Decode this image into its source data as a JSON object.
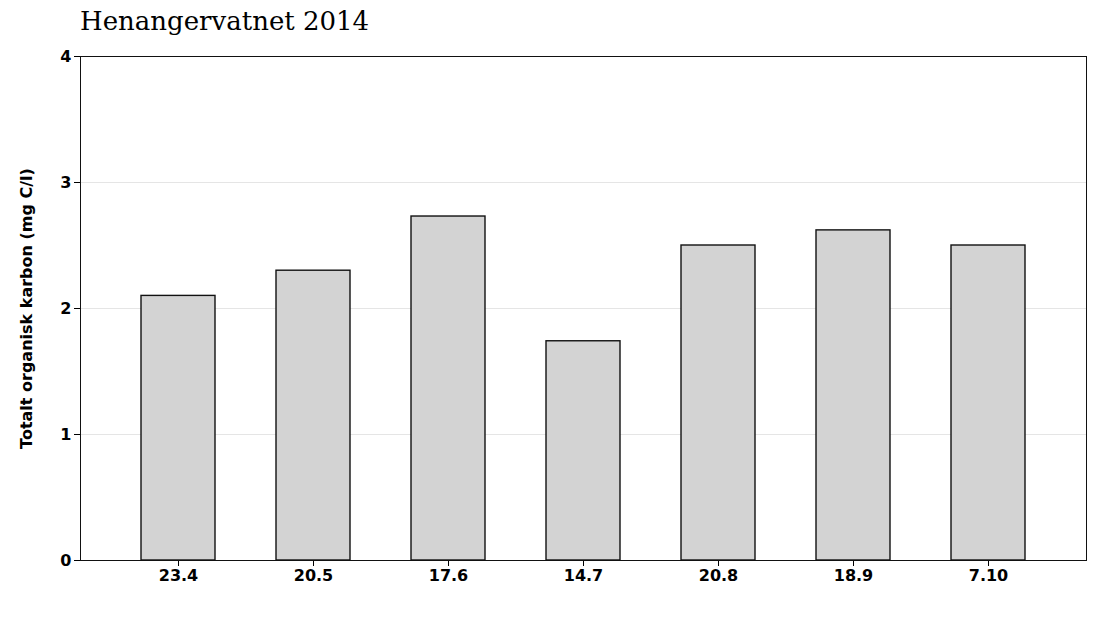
{
  "chart_data": {
    "type": "bar",
    "title": "Henangervatnet 2014",
    "categories": [
      "23.4",
      "20.5",
      "17.6",
      "14.7",
      "20.8",
      "18.9",
      "7.10"
    ],
    "values": [
      2.1,
      2.3,
      2.73,
      1.74,
      2.5,
      2.62,
      2.5
    ],
    "color": "#d3d3d3",
    "ylabel": "Totalt organisk karbon (mg C/l)",
    "ylim": [
      0,
      4
    ],
    "yticks": [
      0,
      1,
      2,
      3,
      4
    ],
    "grid": true
  }
}
